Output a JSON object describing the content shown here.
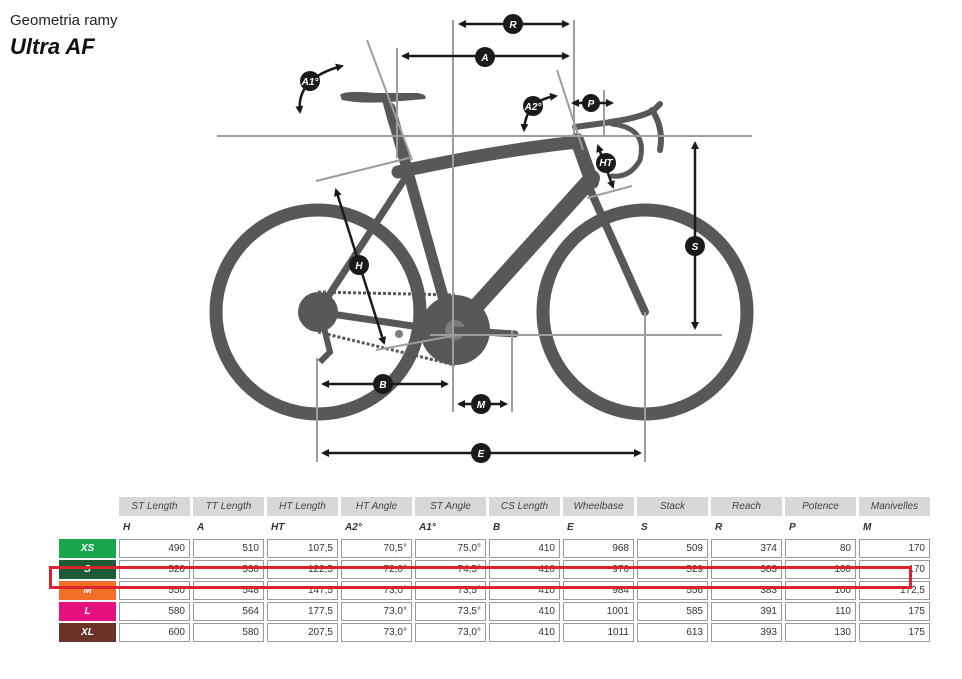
{
  "header": {
    "subtitle": "Geometria ramy",
    "title": "Ultra AF"
  },
  "diagram": {
    "frame_color": "#58585a",
    "guide_color": "#9d9d9d",
    "labels": {
      "R": "R",
      "A": "A",
      "A1": "A1°",
      "A2": "A2°",
      "P": "P",
      "HT": "HT",
      "H": "H",
      "S": "S",
      "B": "B",
      "M": "M",
      "E": "E"
    }
  },
  "table": {
    "columns": [
      {
        "name": "ST Length",
        "symbol": "H"
      },
      {
        "name": "TT Length",
        "symbol": "A"
      },
      {
        "name": "HT Length",
        "symbol": "HT"
      },
      {
        "name": "HT Angle",
        "symbol": "A2°"
      },
      {
        "name": "ST Angle",
        "symbol": "A1°"
      },
      {
        "name": "CS Length",
        "symbol": "B"
      },
      {
        "name": "Wheelbase",
        "symbol": "E"
      },
      {
        "name": "Stack",
        "symbol": "S"
      },
      {
        "name": "Reach",
        "symbol": "R"
      },
      {
        "name": "Potence",
        "symbol": "P"
      },
      {
        "name": "Manivelles",
        "symbol": "M"
      }
    ],
    "rows": [
      {
        "size": "XS",
        "color": "#1aa64b",
        "values": [
          "490",
          "510",
          "107,5",
          "70,5°",
          "75,0°",
          "410",
          "968",
          "509",
          "374",
          "80",
          "170"
        ]
      },
      {
        "size": "S",
        "color": "#1e5a36",
        "values": [
          "520",
          "530",
          "122,5",
          "72,0°",
          "74,5°",
          "410",
          "976",
          "529",
          "383",
          "100",
          "170"
        ]
      },
      {
        "size": "M",
        "color": "#f26f25",
        "values": [
          "550",
          "548",
          "147,5",
          "73,0°",
          "73,5°",
          "410",
          "984",
          "556",
          "383",
          "100",
          "172,5"
        ]
      },
      {
        "size": "L",
        "color": "#e5117e",
        "values": [
          "580",
          "564",
          "177,5",
          "73,0°",
          "73,5°",
          "410",
          "1001",
          "585",
          "391",
          "110",
          "175"
        ]
      },
      {
        "size": "XL",
        "color": "#6b3328",
        "values": [
          "600",
          "580",
          "207,5",
          "73,0°",
          "73,0°",
          "410",
          "1011",
          "613",
          "393",
          "130",
          "175"
        ]
      }
    ],
    "highlight_color": "#d9232e"
  }
}
